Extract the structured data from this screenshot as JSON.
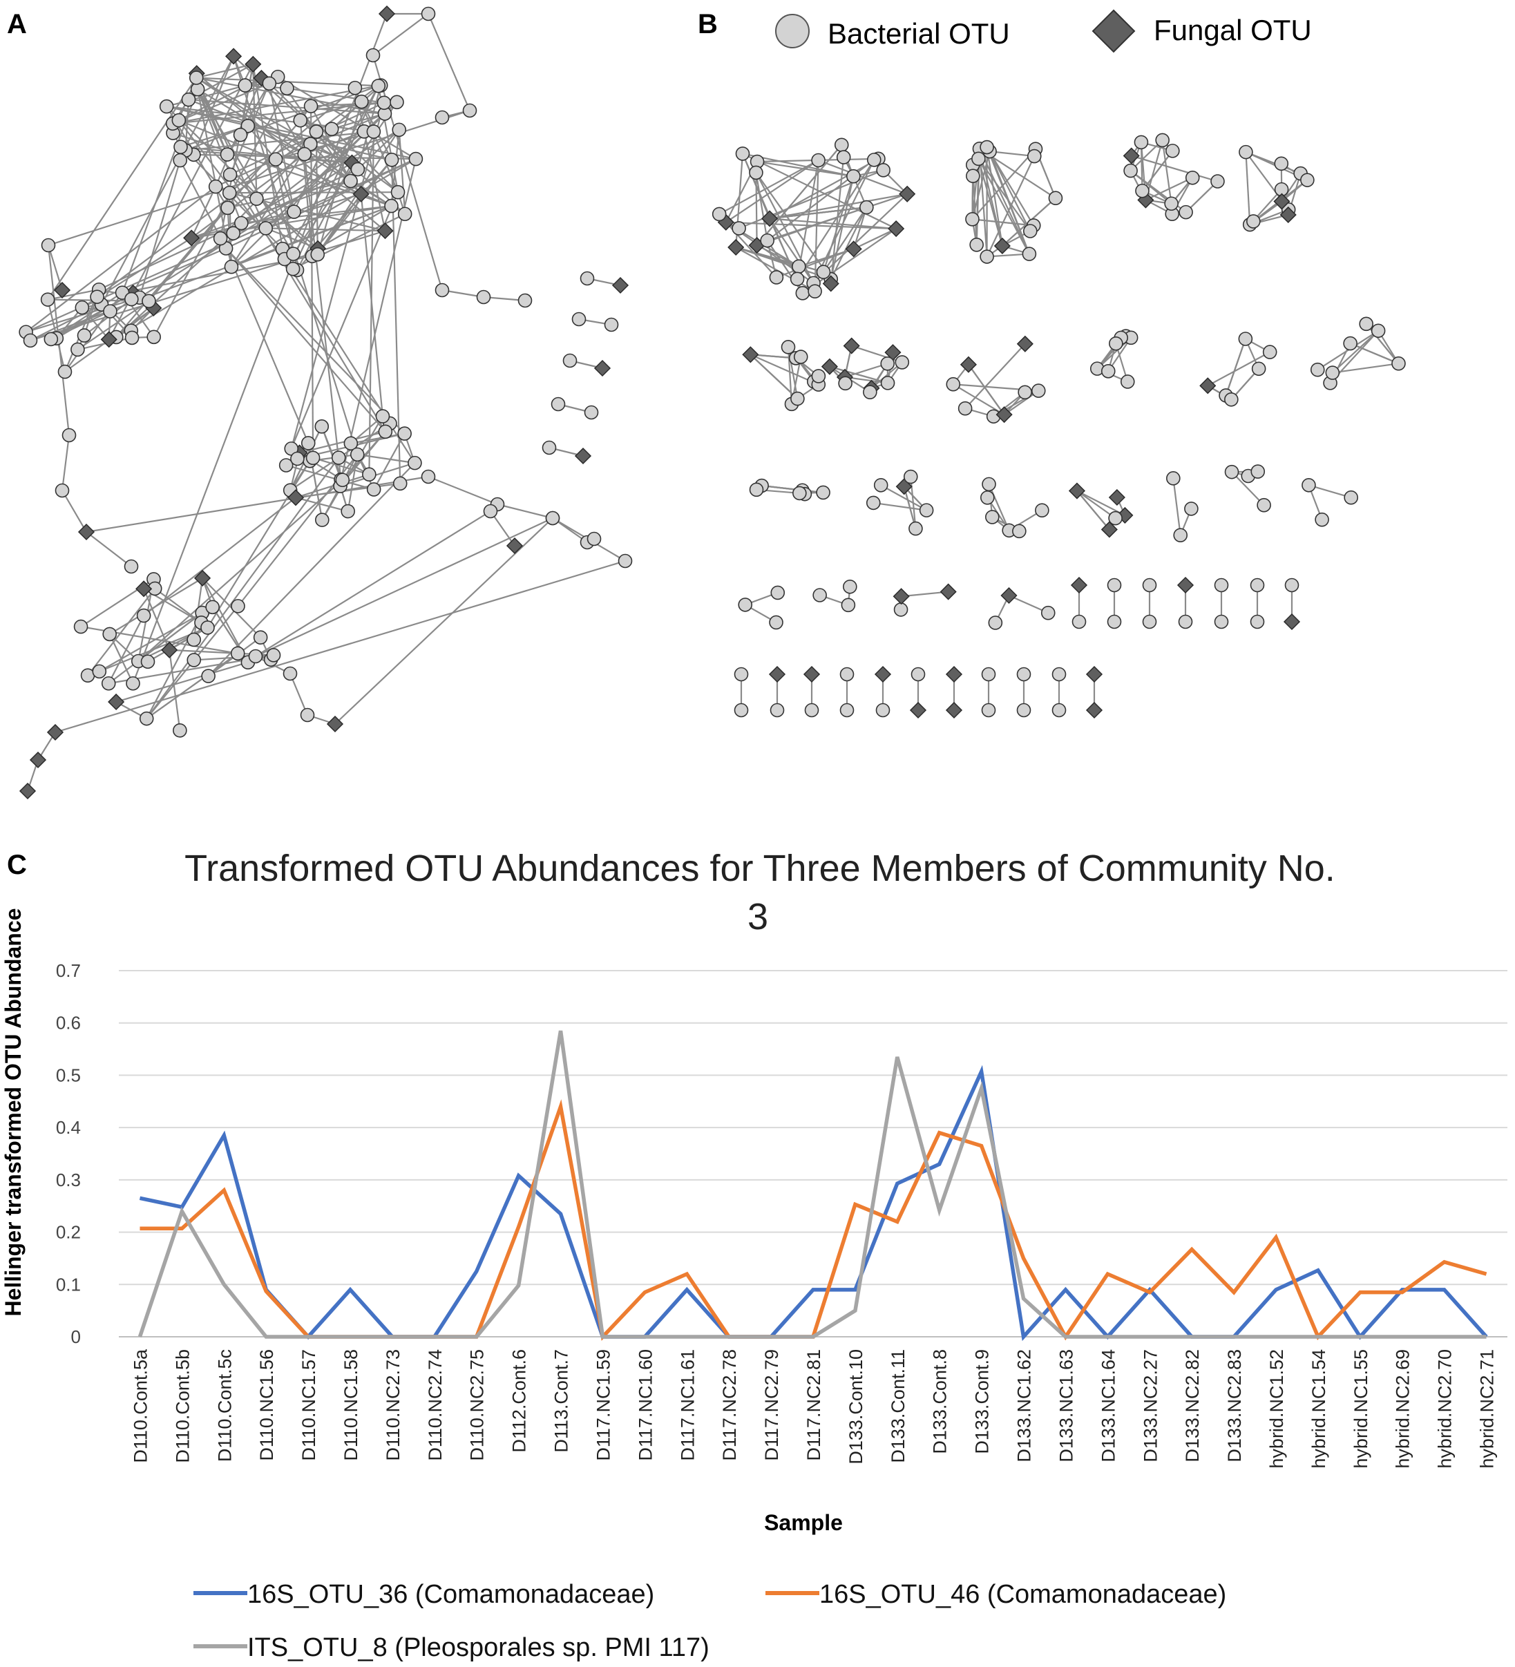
{
  "panels": {
    "a": "A",
    "b": "B",
    "c": "C"
  },
  "network_legend": {
    "bacterial": "Bacterial OTU",
    "fungal": "Fungal OTU",
    "bacterial_color": "#d3d3d3",
    "fungal_color": "#5f5f5f",
    "edge_color": "#8a8a8a"
  },
  "chart_data": {
    "type": "line",
    "title_line1": "Transformed OTU Abundances for Three Members of Community No.",
    "title_line2": "3",
    "xlabel": "Sample",
    "ylabel": "Hellinger transformed OTU Abundance",
    "ylim": [
      0,
      0.7
    ],
    "yticks": [
      "0",
      "0.1",
      "0.2",
      "0.3",
      "0.4",
      "0.5",
      "0.6",
      "0.7"
    ],
    "grid": true,
    "legend_position": "bottom",
    "categories": [
      "D110.Cont.5a",
      "D110.Cont.5b",
      "D110.Cont.5c",
      "D110.NC1.56",
      "D110.NC1.57",
      "D110.NC1.58",
      "D110.NC2.73",
      "D110.NC2.74",
      "D110.NC2.75",
      "D112.Cont.6",
      "D113.Cont.7",
      "D117.NC1.59",
      "D117.NC1.60",
      "D117.NC1.61",
      "D117.NC2.78",
      "D117.NC2.79",
      "D117.NC2.81",
      "D133.Cont.10",
      "D133.Cont.11",
      "D133.Cont.8",
      "D133.Cont.9",
      "D133.NC1.62",
      "D133.NC1.63",
      "D133.NC1.64",
      "D133.NC2.27",
      "D133.NC2.82",
      "D133.NC2.83",
      "hybrid.NC1.52",
      "hybrid.NC1.54",
      "hybrid.NC1.55",
      "hybrid.NC2.69",
      "hybrid.NC2.70",
      "hybrid.NC2.71"
    ],
    "series": [
      {
        "name": "16S_OTU_36 (Comamonadaceae)",
        "color": "#4472c4",
        "values": [
          0.265,
          0.248,
          0.385,
          0.09,
          0,
          0.09,
          0,
          0,
          0.125,
          0.308,
          0.235,
          0,
          0,
          0.09,
          0,
          0,
          0.09,
          0.09,
          0.293,
          0.33,
          0.507,
          0,
          0.09,
          0,
          0.09,
          0,
          0,
          0.09,
          0.127,
          0,
          0.09,
          0.09,
          0
        ]
      },
      {
        "name": "16S_OTU_46 (Comamonadaceae)",
        "color": "#ed7d31",
        "values": [
          0.207,
          0.207,
          0.28,
          0.087,
          0,
          0,
          0,
          0,
          0,
          0.21,
          0.44,
          0,
          0.085,
          0.12,
          0,
          0,
          0,
          0.253,
          0.22,
          0.39,
          0.365,
          0.15,
          0,
          0.12,
          0.085,
          0.167,
          0.085,
          0.19,
          0,
          0.085,
          0.085,
          0.143,
          0.12
        ]
      },
      {
        "name": "ITS_OTU_8 (Pleosporales sp. PMI 117)",
        "color": "#a5a5a5",
        "values": [
          0,
          0.24,
          0.1,
          0,
          0,
          0,
          0,
          0,
          0,
          0.098,
          0.585,
          0,
          0,
          0,
          0,
          0,
          0,
          0.05,
          0.535,
          0.242,
          0.475,
          0.073,
          0,
          0,
          0,
          0,
          0,
          0,
          0,
          0,
          0,
          0,
          0
        ]
      }
    ]
  }
}
